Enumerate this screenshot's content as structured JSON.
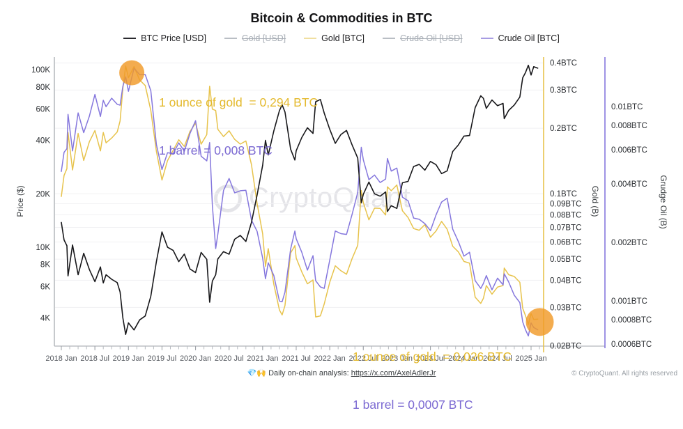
{
  "title": "Bitcoin & Commodities in BTC",
  "legend": [
    {
      "label": "BTC Price [USD]",
      "swatch": "#2a2a2e",
      "disabled": false
    },
    {
      "label": "Gold [USD]",
      "swatch": "#b9bec4",
      "disabled": true
    },
    {
      "label": "Gold [BTC]",
      "swatch": "#f0dfa0",
      "disabled": false
    },
    {
      "label": "Crude Oil [USD]",
      "swatch": "#b9bec4",
      "disabled": true
    },
    {
      "label": "Crude Oil [BTC]",
      "swatch": "#a79ce3",
      "disabled": false
    }
  ],
  "annotations": {
    "top": {
      "gold": "1 ounce of gold  = 0,294 BTC",
      "oil": "1 barrel = 0,008 BTC"
    },
    "bottom": {
      "gold": "1 ounce of gold  = 0,026 BTC",
      "oil": "1 barrel = 0,0007 BTC"
    }
  },
  "watermark": "CryptoQuant",
  "footer": {
    "emoji": "💎🙌",
    "note": " Daily on-chain analysis: ",
    "link": "https://x.com/AxelAdlerJr",
    "copyright": "© CryptoQuant. All rights reserved"
  },
  "colors": {
    "btc": "#17171a",
    "gold": "#e7c34c",
    "oil": "#8577dd",
    "highlight": "#f09a28",
    "grid": "#f1f1f3",
    "axis_gray": "#b4b7bc",
    "tick_text": "#2a2d31",
    "x_tick_text": "#52565c"
  },
  "chart_data": {
    "type": "line",
    "title": "Bitcoin & Commodities in BTC",
    "grid": "horizontal, on gold-axis ticks",
    "legend_position": "top-center",
    "x_axis": {
      "range": [
        2017.896,
        2025.187
      ],
      "minor_tick_step": 0.125,
      "ticks": [
        {
          "v": 2018.0,
          "label": "2018 Jan"
        },
        {
          "v": 2018.5,
          "label": "2018 Jul"
        },
        {
          "v": 2019.0,
          "label": "2019 Jan"
        },
        {
          "v": 2019.5,
          "label": "2019 Jul"
        },
        {
          "v": 2020.0,
          "label": "2020 Jan"
        },
        {
          "v": 2020.5,
          "label": "2020 Jul"
        },
        {
          "v": 2021.0,
          "label": "2021 Jan"
        },
        {
          "v": 2021.5,
          "label": "2021 Jul"
        },
        {
          "v": 2022.0,
          "label": "2022 Jan"
        },
        {
          "v": 2022.5,
          "label": "2022 Jul"
        },
        {
          "v": 2023.0,
          "label": "2023 Jan"
        },
        {
          "v": 2023.5,
          "label": "2023 Jul"
        },
        {
          "v": 2024.0,
          "label": "2024 Jan"
        },
        {
          "v": 2024.5,
          "label": "2024 Jul"
        },
        {
          "v": 2025.0,
          "label": "2025 Jan"
        }
      ]
    },
    "y_axes": {
      "price": {
        "label": "Price ($)",
        "scale": "log",
        "side": "left",
        "range": [
          2774,
          117800
        ],
        "ticks": [
          {
            "v": 100000,
            "label": "100K"
          },
          {
            "v": 80000,
            "label": "80K"
          },
          {
            "v": 60000,
            "label": "60K"
          },
          {
            "v": 40000,
            "label": "40K"
          },
          {
            "v": 20000,
            "label": "20K"
          },
          {
            "v": 10000,
            "label": "10K"
          },
          {
            "v": 8000,
            "label": "8K"
          },
          {
            "v": 6000,
            "label": "6K"
          },
          {
            "v": 4000,
            "label": "4K"
          }
        ]
      },
      "gold": {
        "label": "Gold (B)",
        "scale": "log",
        "side": "right-inner",
        "range": [
          0.0199,
          0.425
        ],
        "ticks": [
          {
            "v": 0.4,
            "label": "0.4BTC"
          },
          {
            "v": 0.3,
            "label": "0.3BTC"
          },
          {
            "v": 0.2,
            "label": "0.2BTC"
          },
          {
            "v": 0.1,
            "label": "0.1BTC"
          },
          {
            "v": 0.09,
            "label": "0.09BTC"
          },
          {
            "v": 0.08,
            "label": "0.08BTC"
          },
          {
            "v": 0.07,
            "label": "0.07BTC"
          },
          {
            "v": 0.06,
            "label": "0.06BTC"
          },
          {
            "v": 0.05,
            "label": "0.05BTC"
          },
          {
            "v": 0.04,
            "label": "0.04BTC"
          },
          {
            "v": 0.03,
            "label": "0.03BTC"
          },
          {
            "v": 0.02,
            "label": "0.02BTC"
          }
        ]
      },
      "oil": {
        "label": "Grudge Oil (B)",
        "scale": "log",
        "side": "right-outer",
        "range": [
          0.000585,
          0.018
        ],
        "ticks": [
          {
            "v": 0.01,
            "label": "0.01BTC"
          },
          {
            "v": 0.008,
            "label": "0.008BTC"
          },
          {
            "v": 0.006,
            "label": "0.006BTC"
          },
          {
            "v": 0.004,
            "label": "0.004BTC"
          },
          {
            "v": 0.002,
            "label": "0.002BTC"
          },
          {
            "v": 0.001,
            "label": "0.001BTC"
          },
          {
            "v": 0.0008,
            "label": "0.0008BTC"
          },
          {
            "v": 0.0006,
            "label": "0.0006BTC"
          }
        ]
      }
    },
    "x": [
      2018.0,
      2018.04,
      2018.083,
      2018.1,
      2018.167,
      2018.25,
      2018.333,
      2018.417,
      2018.5,
      2018.583,
      2018.625,
      2018.667,
      2018.75,
      2018.833,
      2018.875,
      2018.917,
      2018.958,
      2019.0,
      2019.083,
      2019.167,
      2019.25,
      2019.333,
      2019.417,
      2019.5,
      2019.583,
      2019.667,
      2019.75,
      2019.833,
      2019.917,
      2020.0,
      2020.083,
      2020.167,
      2020.21,
      2020.25,
      2020.3,
      2020.333,
      2020.417,
      2020.5,
      2020.583,
      2020.667,
      2020.75,
      2020.833,
      2020.917,
      2021.0,
      2021.042,
      2021.083,
      2021.167,
      2021.25,
      2021.29,
      2021.333,
      2021.417,
      2021.48,
      2021.5,
      2021.583,
      2021.667,
      2021.75,
      2021.79,
      2021.86,
      2021.917,
      2022.0,
      2022.083,
      2022.167,
      2022.25,
      2022.333,
      2022.417,
      2022.47,
      2022.5,
      2022.583,
      2022.667,
      2022.75,
      2022.833,
      2022.86,
      2022.917,
      2023.0,
      2023.083,
      2023.167,
      2023.25,
      2023.333,
      2023.417,
      2023.5,
      2023.583,
      2023.667,
      2023.75,
      2023.833,
      2023.917,
      2024.0,
      2024.083,
      2024.167,
      2024.25,
      2024.29,
      2024.333,
      2024.417,
      2024.5,
      2024.583,
      2024.6,
      2024.667,
      2024.75,
      2024.833,
      2024.875,
      2024.917,
      2024.96,
      2025.0,
      2025.04,
      2025.1
    ],
    "series": [
      {
        "name": "BTC Price [USD]",
        "axis": "price",
        "color": "#17171a",
        "width": 1.6,
        "values": [
          13800,
          11000,
          10200,
          6900,
          10300,
          7000,
          9250,
          7500,
          6400,
          7750,
          6300,
          7000,
          6600,
          6320,
          5600,
          4000,
          3230,
          3750,
          3420,
          3900,
          4100,
          5300,
          8300,
          12200,
          10000,
          9600,
          8300,
          9150,
          7550,
          7200,
          9350,
          8550,
          4900,
          6450,
          7000,
          8600,
          9450,
          9140,
          11100,
          11650,
          10780,
          13800,
          19700,
          29000,
          40000,
          33100,
          45200,
          58800,
          63500,
          57800,
          35700,
          31000,
          35000,
          41500,
          47100,
          43800,
          66000,
          68000,
          57000,
          46200,
          38500,
          43200,
          45500,
          37700,
          31800,
          17800,
          19900,
          23300,
          20000,
          19400,
          20500,
          15900,
          17150,
          16550,
          23100,
          23500,
          28500,
          29300,
          27200,
          30450,
          29200,
          26000,
          26950,
          34650,
          37700,
          42300,
          42600,
          61200,
          71300,
          69000,
          60600,
          67500,
          62700,
          64600,
          53000,
          59000,
          63300,
          70200,
          90000,
          96400,
          106000,
          93400,
          104000,
          102000
        ]
      },
      {
        "name": "Gold [BTC]",
        "axis": "gold",
        "color": "#e7c34c",
        "width": 1.5,
        "values": [
          0.0971,
          0.1214,
          0.1304,
          0.1913,
          0.1286,
          0.1893,
          0.1422,
          0.1733,
          0.1953,
          0.1574,
          0.1913,
          0.1714,
          0.1803,
          0.1923,
          0.2161,
          0.305,
          0.387,
          0.3419,
          0.3845,
          0.3333,
          0.3146,
          0.2415,
          0.1566,
          0.1156,
          0.142,
          0.1583,
          0.1771,
          0.165,
          0.1934,
          0.2111,
          0.169,
          0.1871,
          0.3122,
          0.245,
          0.2414,
          0.1977,
          0.1831,
          0.1948,
          0.1779,
          0.1691,
          0.1749,
          0.1362,
          0.0901,
          0.0653,
          0.0463,
          0.0559,
          0.0383,
          0.0292,
          0.0277,
          0.0306,
          0.0534,
          0.0577,
          0.0506,
          0.0437,
          0.0385,
          0.0401,
          0.0271,
          0.0274,
          0.0311,
          0.0391,
          0.0466,
          0.0442,
          0.0426,
          0.0503,
          0.0579,
          0.1034,
          0.091,
          0.0758,
          0.0858,
          0.0856,
          0.0798,
          0.1075,
          0.1032,
          0.1097,
          0.0835,
          0.0777,
          0.0691,
          0.0679,
          0.0721,
          0.0631,
          0.0673,
          0.0746,
          0.0686,
          0.0573,
          0.054,
          0.0488,
          0.0479,
          0.0334,
          0.0313,
          0.033,
          0.0378,
          0.0345,
          0.0372,
          0.0378,
          0.0455,
          0.0424,
          0.0416,
          0.0391,
          0.0297,
          0.0275,
          0.025,
          0.0281,
          0.0264,
          0.0265
        ]
      },
      {
        "name": "Crude Oil [BTC]",
        "axis": "oil",
        "color": "#8577dd",
        "width": 1.5,
        "values": [
          0.00464,
          0.00582,
          0.00608,
          0.00913,
          0.00592,
          0.00929,
          0.00735,
          0.00893,
          0.01156,
          0.0089,
          0.01079,
          0.01,
          0.01106,
          0.01028,
          0.01018,
          0.01275,
          0.01424,
          0.012,
          0.01579,
          0.01462,
          0.01463,
          0.01208,
          0.00639,
          0.00475,
          0.0058,
          0.00573,
          0.00651,
          0.0059,
          0.00728,
          0.00847,
          0.00556,
          0.00526,
          0.00653,
          0.0031,
          0.00186,
          0.00221,
          0.0037,
          0.00427,
          0.0036,
          0.00369,
          0.00371,
          0.00261,
          0.00228,
          0.00166,
          0.0013,
          0.00157,
          0.00135,
          0.001,
          0.00099,
          0.00111,
          0.00185,
          0.00229,
          0.00209,
          0.00178,
          0.00144,
          0.00171,
          0.00127,
          0.00118,
          0.00116,
          0.00162,
          0.00229,
          0.00222,
          0.0022,
          0.00279,
          0.00362,
          0.00618,
          0.00533,
          0.00421,
          0.00445,
          0.00407,
          0.00424,
          0.00541,
          0.00466,
          0.00483,
          0.00342,
          0.00328,
          0.00267,
          0.00263,
          0.0025,
          0.0023,
          0.00277,
          0.00323,
          0.00338,
          0.00234,
          0.00202,
          0.0017,
          0.00178,
          0.00127,
          0.00116,
          0.00123,
          0.00135,
          0.00114,
          0.00131,
          0.00121,
          0.00138,
          0.00125,
          0.00107,
          0.00098,
          0.00078,
          0.00071,
          0.00066,
          0.00077,
          0.00073,
          0.00071
        ]
      }
    ],
    "highlights": [
      {
        "x": 2019.05,
        "y": 0.36,
        "axis": "gold",
        "r": 18
      },
      {
        "x": 2025.13,
        "y": 0.0257,
        "axis": "gold",
        "r": 20
      }
    ]
  }
}
